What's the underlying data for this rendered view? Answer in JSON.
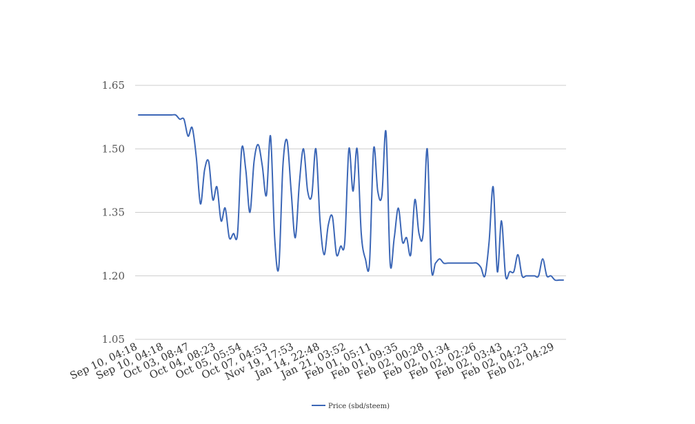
{
  "chart_data": {
    "type": "line",
    "title": "",
    "xlabel": "",
    "ylabel": "",
    "ylim": [
      1.05,
      1.65
    ],
    "yticks": [
      "1.65",
      "1.50",
      "1.35",
      "1.20",
      "1.05"
    ],
    "ytick_values": [
      1.65,
      1.5,
      1.35,
      1.2,
      1.05
    ],
    "grid": true,
    "legend_position": "bottom",
    "x_tick_labels": [
      "Sep 10, 04:18",
      "Sep 10, 04:18",
      "Oct 03, 08:47",
      "Oct 04, 08:23",
      "Oct 05, 05:54",
      "Oct 07, 04:53",
      "Nov 19, 17:53",
      "Jan 14, 22:48",
      "Jan 21, 03:52",
      "Feb 01, 05:11",
      "Feb 01, 09:35",
      "Feb 02, 00:28",
      "Feb 02, 01:34",
      "Feb 02, 02:26",
      "Feb 02, 03:43",
      "Feb 02, 04:23",
      "Feb 02, 04:29"
    ],
    "series": [
      {
        "name": "Price (sbd/steem)",
        "color": "#3b66b6",
        "values": [
          1.58,
          1.58,
          1.58,
          1.58,
          1.58,
          1.58,
          1.58,
          1.58,
          1.58,
          1.58,
          1.57,
          1.57,
          1.53,
          1.55,
          1.48,
          1.37,
          1.45,
          1.47,
          1.38,
          1.41,
          1.33,
          1.36,
          1.29,
          1.3,
          1.3,
          1.5,
          1.45,
          1.35,
          1.47,
          1.51,
          1.46,
          1.39,
          1.53,
          1.29,
          1.22,
          1.46,
          1.52,
          1.4,
          1.29,
          1.42,
          1.5,
          1.4,
          1.39,
          1.5,
          1.33,
          1.25,
          1.32,
          1.34,
          1.25,
          1.27,
          1.28,
          1.5,
          1.4,
          1.5,
          1.3,
          1.24,
          1.23,
          1.5,
          1.4,
          1.39,
          1.54,
          1.23,
          1.29,
          1.36,
          1.28,
          1.29,
          1.25,
          1.38,
          1.3,
          1.3,
          1.5,
          1.22,
          1.23,
          1.24,
          1.23,
          1.23,
          1.23,
          1.23,
          1.23,
          1.23,
          1.23,
          1.23,
          1.23,
          1.22,
          1.2,
          1.28,
          1.41,
          1.21,
          1.33,
          1.2,
          1.21,
          1.21,
          1.25,
          1.2,
          1.2,
          1.2,
          1.2,
          1.2,
          1.24,
          1.2,
          1.2,
          1.19,
          1.19,
          1.19
        ]
      }
    ]
  }
}
